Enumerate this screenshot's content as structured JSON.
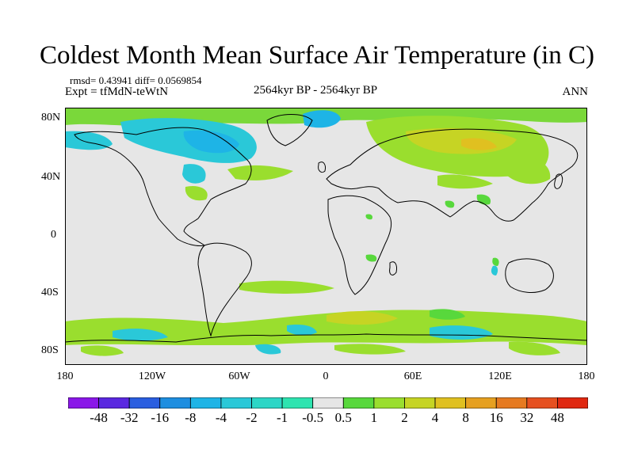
{
  "title": "Coldest Month Mean Surface Air Temperature (in C)",
  "stats": "rmsd= 0.43941 diff= 0.0569854",
  "experiment": "Expt = tfMdN-teWtN",
  "period": "2564kyr BP - 2564kyr BP",
  "season": "ANN",
  "lat_ticks": [
    "80N",
    "40N",
    "0",
    "40S",
    "80S"
  ],
  "lon_ticks": [
    "180",
    "120W",
    "60W",
    "0",
    "60E",
    "120E",
    "180"
  ],
  "colorbar": {
    "labels": [
      "-48",
      "-32",
      "-16",
      "-8",
      "-4",
      "-2",
      "-1",
      "-0.5",
      "0.5",
      "1",
      "2",
      "4",
      "8",
      "16",
      "32",
      "48"
    ],
    "colors": [
      "#8a17e8",
      "#5a28e0",
      "#2a5ee0",
      "#1e8ee0",
      "#1eb4e6",
      "#2ac8d8",
      "#2cd6c6",
      "#2ee4b0",
      "#e6e6e6",
      "#58d83c",
      "#9ade2e",
      "#c6d424",
      "#e0c020",
      "#e6a020",
      "#e67a20",
      "#e65020",
      "#e02810"
    ]
  },
  "colors": {
    "background_field": "#e6e6e6",
    "coast": "#000000"
  }
}
